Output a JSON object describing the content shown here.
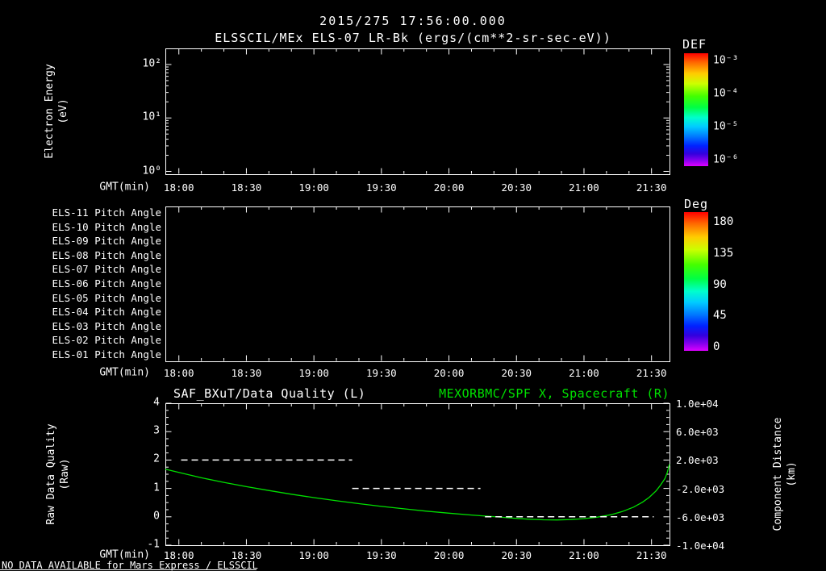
{
  "header": {
    "timestamp": "2015/275 17:56:00.000",
    "title": "ELSSCIL/MEx ELS-07 LR-Bk  (ergs/(cm**2-sr-sec-eV))"
  },
  "footer": {
    "message": "NO DATA AVAILABLE for Mars Express / ELSSCIL"
  },
  "colors": {
    "background": "#000000",
    "foreground": "#ffffff",
    "accent_green": "#00e000"
  },
  "chart_data": [
    {
      "id": "electron_energy_spectrogram",
      "type": "heatmap",
      "xlabel": "GMT(min)",
      "x_ticks": [
        "18:00",
        "18:30",
        "19:00",
        "19:30",
        "20:00",
        "20:30",
        "21:00",
        "21:30"
      ],
      "ylabel_lines": [
        "Electron Energy",
        "(eV)"
      ],
      "y_scale": "log",
      "y_ticks": [
        "10²",
        "10¹",
        "10⁰"
      ],
      "y_tick_exponents": [
        2,
        1,
        0
      ],
      "colorbar": {
        "title": "DEF",
        "tick_labels": [
          "10⁻³",
          "10⁻⁴",
          "10⁻⁵",
          "10⁻⁶"
        ]
      },
      "values": [],
      "no_data": true
    },
    {
      "id": "pitch_angle_panel",
      "type": "heatmap",
      "xlabel": "GMT(min)",
      "x_ticks": [
        "18:00",
        "18:30",
        "19:00",
        "19:30",
        "20:00",
        "20:30",
        "21:00",
        "21:30"
      ],
      "row_labels": [
        "ELS-11 Pitch Angle",
        "ELS-10 Pitch Angle",
        "ELS-09 Pitch Angle",
        "ELS-08 Pitch Angle",
        "ELS-07 Pitch Angle",
        "ELS-06 Pitch Angle",
        "ELS-05 Pitch Angle",
        "ELS-04 Pitch Angle",
        "ELS-03 Pitch Angle",
        "ELS-02 Pitch Angle",
        "ELS-01 Pitch Angle"
      ],
      "colorbar": {
        "title": "Deg",
        "tick_labels": [
          "180",
          "135",
          "90",
          "45",
          "0"
        ]
      },
      "values": [],
      "no_data": true
    },
    {
      "id": "quality_and_distance",
      "type": "line",
      "left_title": "SAF_BXuT/Data Quality (L)",
      "right_title": "MEXORBMC/SPF X, Spacecraft (R)",
      "xlabel": "GMT(min)",
      "x_ticks": [
        "18:00",
        "18:30",
        "19:00",
        "19:30",
        "20:00",
        "20:30",
        "21:00",
        "21:30"
      ],
      "x_range_minutes_from_1800": [
        -6,
        218
      ],
      "left_axis": {
        "label_lines": [
          "Raw Data Quality",
          "(Raw)"
        ],
        "tick_labels": [
          "4",
          "3",
          "2",
          "1",
          "0",
          "-1"
        ],
        "range": [
          4,
          -1
        ]
      },
      "right_axis": {
        "label_lines": [
          "Component Distance",
          "(km)"
        ],
        "tick_labels": [
          "1.0e+04",
          "6.0e+03",
          "2.0e+03",
          "-2.0e+03",
          "-6.0e+03",
          "-1.0e+04"
        ],
        "range": [
          10000,
          -10000
        ]
      },
      "series": [
        {
          "name": "MEXORBMC/SPF X, Spacecraft",
          "axis": "right",
          "style": "solid",
          "color": "#00e000",
          "points": [
            [
              -6,
              700
            ],
            [
              0,
              250
            ],
            [
              10,
              -500
            ],
            [
              20,
              -1150
            ],
            [
              30,
              -1750
            ],
            [
              40,
              -2300
            ],
            [
              50,
              -2820
            ],
            [
              60,
              -3300
            ],
            [
              70,
              -3740
            ],
            [
              80,
              -4150
            ],
            [
              90,
              -4530
            ],
            [
              100,
              -4880
            ],
            [
              110,
              -5200
            ],
            [
              120,
              -5490
            ],
            [
              130,
              -5750
            ],
            [
              140,
              -5980
            ],
            [
              148,
              -6180
            ],
            [
              155,
              -6330
            ],
            [
              162,
              -6420
            ],
            [
              168,
              -6440
            ],
            [
              174,
              -6390
            ],
            [
              180,
              -6260
            ],
            [
              186,
              -6040
            ],
            [
              192,
              -5700
            ],
            [
              197,
              -5260
            ],
            [
              202,
              -4640
            ],
            [
              206,
              -3940
            ],
            [
              209,
              -3250
            ],
            [
              212,
              -2350
            ],
            [
              214,
              -1550
            ],
            [
              216,
              -600
            ],
            [
              217,
              250
            ],
            [
              218,
              1400
            ]
          ]
        },
        {
          "name": "SAF_BXuT/Data Quality",
          "axis": "left",
          "style": "dashed",
          "color": "#ffffff",
          "segments": [
            {
              "value": 2,
              "t_start": 1,
              "t_end": 77
            },
            {
              "value": 1,
              "t_start": 77,
              "t_end": 134
            },
            {
              "value": 0,
              "t_start": 136,
              "t_end": 211
            }
          ]
        }
      ]
    }
  ]
}
